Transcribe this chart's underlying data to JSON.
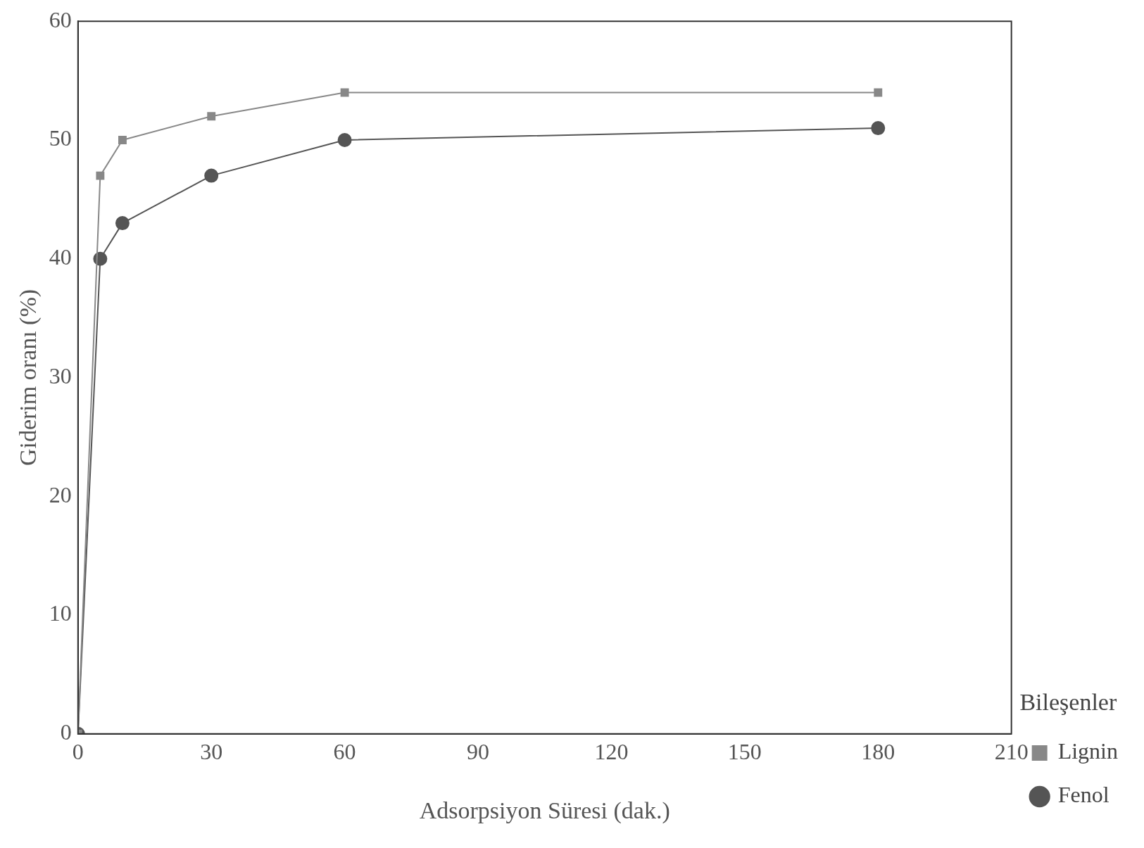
{
  "chart_data": {
    "type": "line",
    "xlabel": "Adsorpsiyon Süresi (dak.)",
    "ylabel": "Giderim oranı (%)",
    "legend_title": "Bileşenler",
    "legend": "right",
    "grid": false,
    "line_style": "solid",
    "xlim": [
      0,
      210
    ],
    "xticks": [
      0,
      30,
      60,
      90,
      120,
      150,
      180,
      210
    ],
    "ylim": [
      0,
      60
    ],
    "yticks": [
      0,
      10,
      20,
      30,
      40,
      50,
      60
    ],
    "series": [
      {
        "name": "Lignin",
        "color": "#888888",
        "marker": "square",
        "x": [
          0,
          5,
          10,
          30,
          60,
          180
        ],
        "values": [
          0,
          47,
          50,
          52,
          54,
          54
        ]
      },
      {
        "name": "Fenol",
        "color": "#555555",
        "marker": "circle",
        "x": [
          0,
          5,
          10,
          30,
          60,
          180
        ],
        "values": [
          0,
          40,
          43,
          47,
          50,
          51
        ]
      }
    ]
  }
}
